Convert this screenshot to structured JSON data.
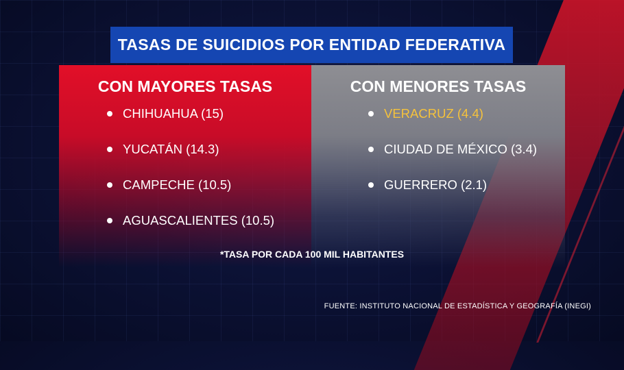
{
  "title": "TASAS DE SUICIDIOS POR ENTIDAD FEDERATIVA",
  "left_panel": {
    "heading": "CON MAYORES TASAS",
    "items": [
      {
        "label": "CHIHUAHUA (15)"
      },
      {
        "label": "YUCATÁN (14.3)"
      },
      {
        "label": "CAMPECHE (10.5)"
      },
      {
        "label": "AGUASCALIENTES (10.5)"
      }
    ]
  },
  "right_panel": {
    "heading": "CON MENORES TASAS",
    "items": [
      {
        "label": "VERACRUZ (4.4)",
        "highlight_color": "#f5c23c"
      },
      {
        "label": "CIUDAD DE MÉXICO (3.4)"
      },
      {
        "label": "GUERRERO (2.1)"
      }
    ]
  },
  "note": "*TASA POR CADA 100 MIL HABITANTES",
  "source": "FUENTE: INSTITUTO NACIONAL DE ESTADÍSTICA Y GEOGRAFÍA (INEGI)",
  "colors": {
    "title_bg": "#1546b2",
    "left_panel": "#e20f28",
    "right_panel": "#8e8e93",
    "highlight": "#f5c23c"
  }
}
